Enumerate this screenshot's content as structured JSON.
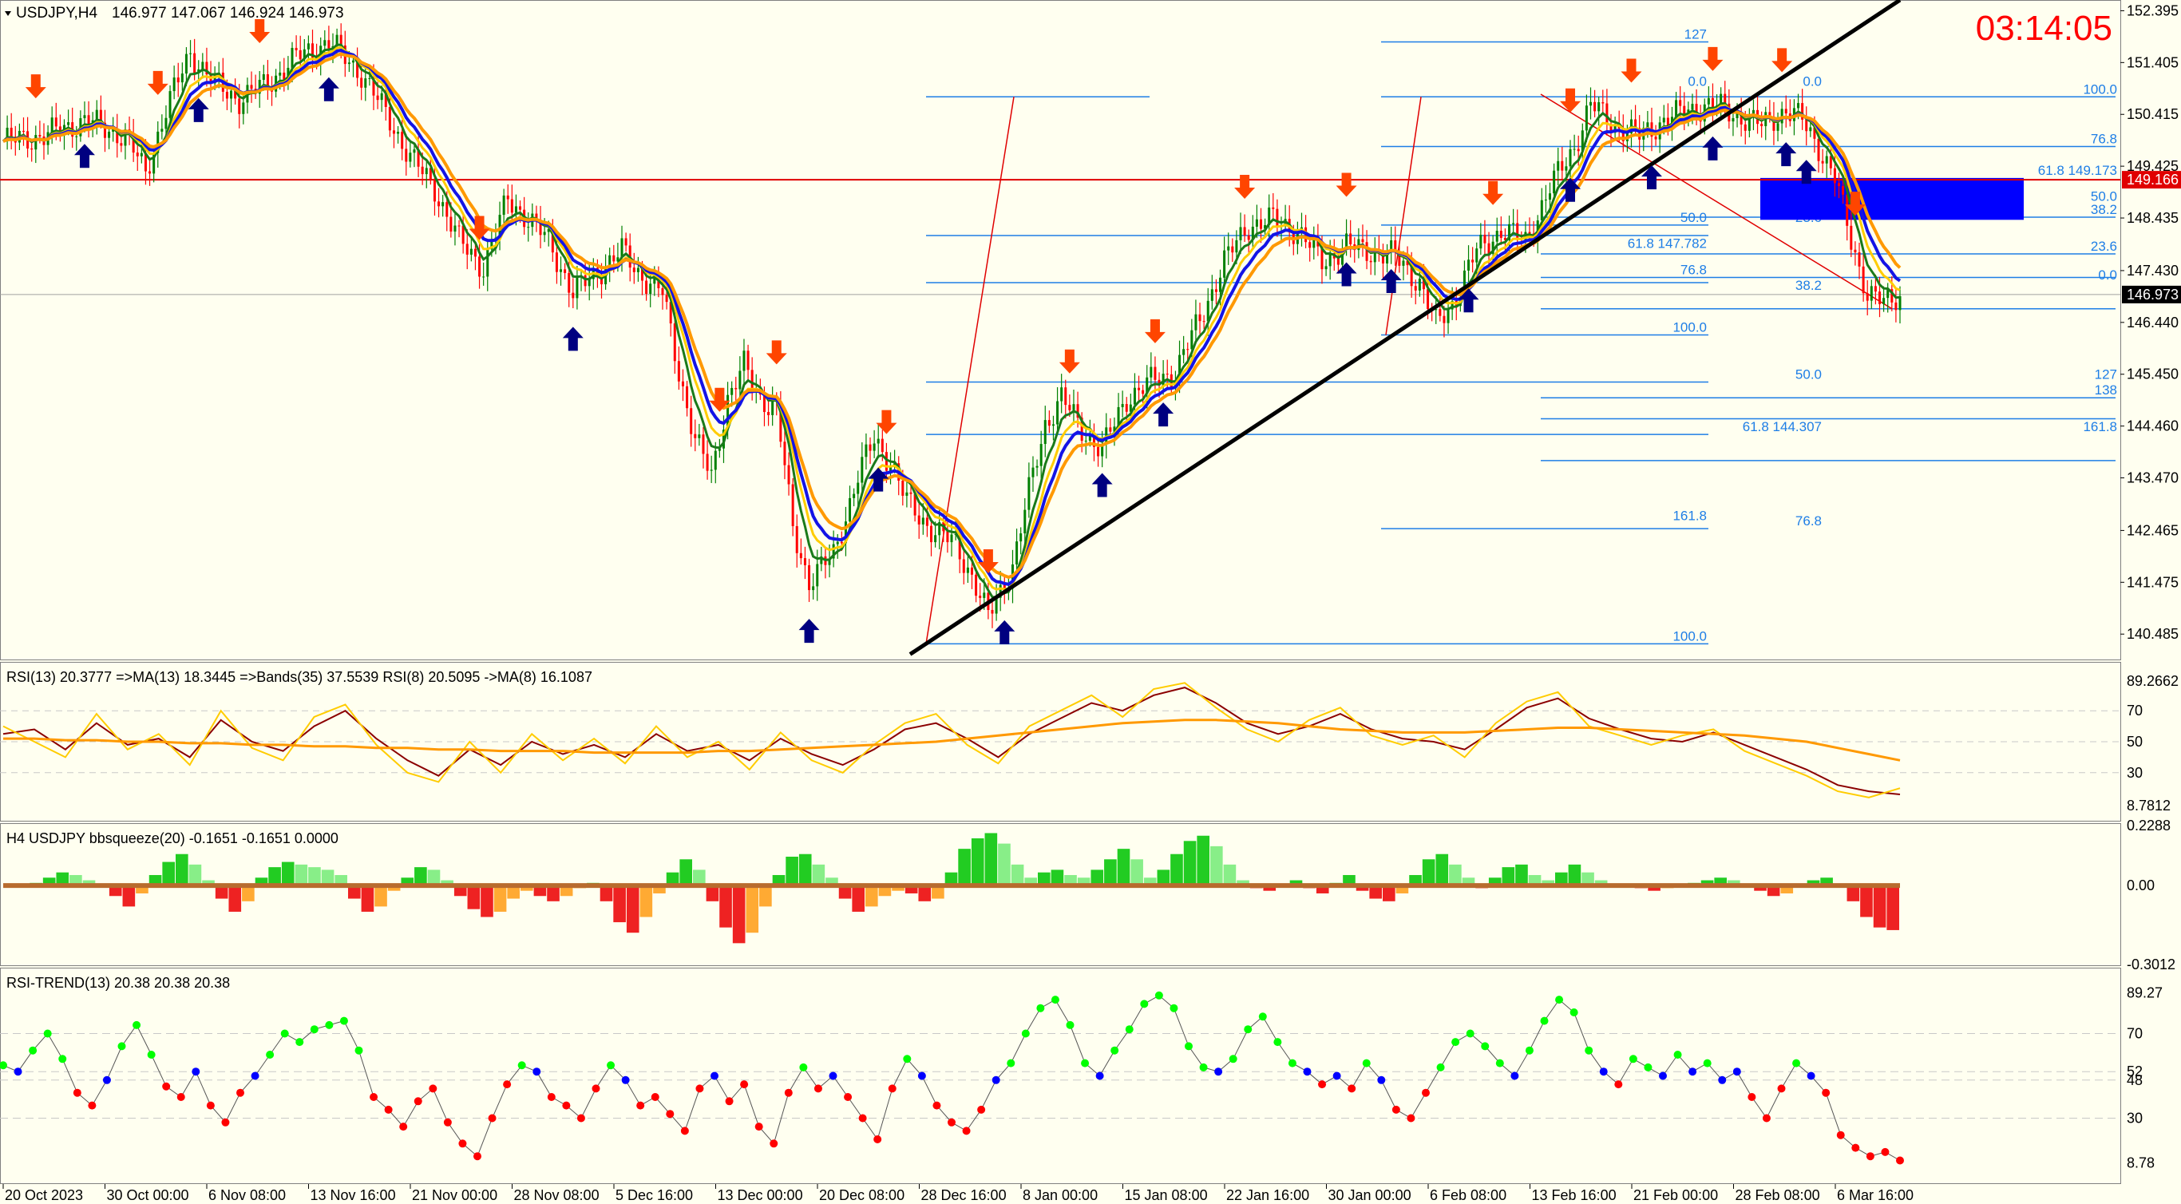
{
  "header": {
    "symbol": "USDJPY,H4",
    "ohlc": "146.977 147.067 146.924 146.973",
    "clock": "03:14:05"
  },
  "colors": {
    "background": "#fffff0",
    "grid": "#c8c8c8",
    "axis_text": "#000000",
    "bull": "#008000",
    "bear": "#ff0000",
    "ma_fast_green": "#1a7a1a",
    "ma_blue": "#1414e6",
    "ma_orange": "#ff9900",
    "ma_yellow": "#ffcc00",
    "fib": "#1e7ee6",
    "support_line": "#e00000",
    "trendline": "#000000",
    "clock": "#ff0000",
    "signal_up": "#000080",
    "signal_down": "#ff4500",
    "zone": "#0000ff",
    "rsi_green": "#00ff00",
    "rsi_red": "#ff0000",
    "rsi_blue": "#0000ff"
  },
  "chart_data": [
    {
      "type": "candlestick",
      "panel": "main",
      "title": "USDJPY,H4",
      "ylim": [
        140.0,
        152.6
      ],
      "price_ticks": [
        "152.395",
        "151.405",
        "150.415",
        "149.425",
        "148.435",
        "147.430",
        "146.440",
        "145.450",
        "144.460",
        "143.470",
        "142.465",
        "141.475",
        "140.485"
      ],
      "x_ticks": [
        "20 Oct 2023",
        "30 Oct 00:00",
        "6 Nov 08:00",
        "13 Nov 16:00",
        "21 Nov 00:00",
        "28 Nov 08:00",
        "5 Dec 16:00",
        "13 Dec 00:00",
        "20 Dec 08:00",
        "28 Dec 16:00",
        "8 Jan 00:00",
        "15 Jan 08:00",
        "22 Jan 16:00",
        "30 Jan 00:00",
        "6 Feb 08:00",
        "13 Feb 16:00",
        "21 Feb 00:00",
        "28 Feb 08:00",
        "6 Mar 16:00"
      ],
      "close_path": [
        [
          0,
          149.9
        ],
        [
          10,
          150.0
        ],
        [
          20,
          150.3
        ],
        [
          30,
          150.0
        ],
        [
          35,
          149.3
        ],
        [
          40,
          150.5
        ],
        [
          46,
          151.6
        ],
        [
          52,
          151.0
        ],
        [
          58,
          150.7
        ],
        [
          65,
          151.0
        ],
        [
          72,
          151.5
        ],
        [
          80,
          151.8
        ],
        [
          88,
          151.2
        ],
        [
          95,
          150.3
        ],
        [
          100,
          149.6
        ],
        [
          106,
          149.0
        ],
        [
          112,
          148.0
        ],
        [
          118,
          147.5
        ],
        [
          124,
          148.8
        ],
        [
          128,
          148.5
        ],
        [
          134,
          148.0
        ],
        [
          140,
          147.0
        ],
        [
          146,
          147.4
        ],
        [
          152,
          147.8
        ],
        [
          156,
          147.4
        ],
        [
          162,
          147.0
        ],
        [
          166,
          145.5
        ],
        [
          170,
          144.2
        ],
        [
          174,
          143.5
        ],
        [
          178,
          145.0
        ],
        [
          182,
          145.6
        ],
        [
          186,
          145.0
        ],
        [
          190,
          144.8
        ],
        [
          194,
          142.5
        ],
        [
          198,
          141.5
        ],
        [
          204,
          142.0
        ],
        [
          210,
          143.5
        ],
        [
          214,
          144.2
        ],
        [
          218,
          143.8
        ],
        [
          222,
          143.0
        ],
        [
          228,
          142.5
        ],
        [
          234,
          142.2
        ],
        [
          238,
          141.6
        ],
        [
          242,
          140.8
        ],
        [
          248,
          141.8
        ],
        [
          252,
          143.2
        ],
        [
          256,
          144.5
        ],
        [
          260,
          145.0
        ],
        [
          265,
          144.4
        ],
        [
          270,
          144.0
        ],
        [
          276,
          145.0
        ],
        [
          282,
          145.3
        ],
        [
          288,
          145.5
        ],
        [
          294,
          146.5
        ],
        [
          300,
          147.6
        ],
        [
          306,
          148.3
        ],
        [
          312,
          148.4
        ],
        [
          318,
          148.2
        ],
        [
          324,
          147.6
        ],
        [
          330,
          147.9
        ],
        [
          336,
          147.8
        ],
        [
          342,
          147.7
        ],
        [
          348,
          147.2
        ],
        [
          352,
          146.4
        ],
        [
          356,
          146.8
        ],
        [
          362,
          147.8
        ],
        [
          368,
          148.2
        ],
        [
          374,
          148.0
        ],
        [
          380,
          149.0
        ],
        [
          386,
          149.8
        ],
        [
          390,
          150.6
        ],
        [
          396,
          150.2
        ],
        [
          402,
          150.0
        ],
        [
          408,
          150.3
        ],
        [
          414,
          150.5
        ],
        [
          420,
          150.6
        ],
        [
          426,
          150.4
        ],
        [
          432,
          150.2
        ],
        [
          438,
          150.5
        ],
        [
          442,
          150.3
        ],
        [
          446,
          149.8
        ],
        [
          450,
          149.2
        ],
        [
          454,
          148.0
        ],
        [
          458,
          147.0
        ],
        [
          462,
          146.8
        ],
        [
          466,
          146.97
        ]
      ]
    },
    {
      "type": "line",
      "panel": "rsi",
      "title": "RSI(13) 20.3777  =>MA(13) 18.3445  =>Bands(35) 37.5539  RSI(8) 20.5095  ->MA(8) 16.1087",
      "ylim": [
        0,
        100
      ],
      "y_ticks": [
        "89.2662",
        "70",
        "50",
        "30",
        "8.7812"
      ],
      "tick_values": [
        89.2662,
        70,
        50,
        30,
        8.7812
      ],
      "series": [
        {
          "color": "#8b0000",
          "values": [
            55,
            58,
            45,
            62,
            48,
            52,
            40,
            64,
            50,
            44,
            60,
            70,
            52,
            38,
            28,
            45,
            35,
            50,
            42,
            48,
            40,
            55,
            44,
            48,
            38,
            52,
            42,
            35,
            45,
            58,
            62,
            52,
            40,
            55,
            65,
            75,
            70,
            80,
            85,
            75,
            62,
            55,
            60,
            68,
            58,
            52,
            50,
            45,
            58,
            72,
            78,
            65,
            58,
            52,
            50,
            56,
            48,
            40,
            32,
            22,
            18,
            16
          ]
        },
        {
          "color": "#ffcc00",
          "values": [
            60,
            50,
            40,
            68,
            45,
            55,
            35,
            70,
            46,
            38,
            66,
            74,
            48,
            30,
            24,
            50,
            30,
            55,
            38,
            52,
            36,
            60,
            40,
            50,
            32,
            56,
            38,
            30,
            48,
            62,
            68,
            48,
            36,
            60,
            70,
            80,
            66,
            84,
            88,
            72,
            58,
            50,
            64,
            72,
            54,
            48,
            54,
            40,
            62,
            76,
            82,
            60,
            54,
            48,
            54,
            58,
            44,
            36,
            28,
            18,
            14,
            20
          ]
        },
        {
          "color": "#ff9900",
          "values": [
            52,
            52,
            51,
            51,
            50,
            50,
            49,
            49,
            48,
            48,
            47,
            47,
            46,
            46,
            45,
            45,
            44,
            44,
            44,
            43,
            43,
            43,
            43,
            44,
            44,
            45,
            46,
            47,
            48,
            49,
            50,
            52,
            54,
            56,
            58,
            60,
            62,
            63,
            64,
            64,
            63,
            62,
            60,
            58,
            57,
            56,
            56,
            56,
            57,
            58,
            59,
            59,
            58,
            57,
            56,
            55,
            54,
            52,
            50,
            46,
            42,
            38
          ]
        }
      ]
    },
    {
      "type": "bar",
      "panel": "squeeze",
      "title": "H4 USDJPY bbsqueeze(20) -0.1651 -0.1651 0.0000",
      "ylim": [
        -0.3012,
        0.2288
      ],
      "y_ticks": [
        "0.2288",
        "0.00",
        "-0.3012"
      ],
      "tick_values": [
        0.2288,
        0,
        -0.3012
      ],
      "values": [
        0,
        0,
        0.01,
        0.03,
        0.05,
        0.04,
        0.02,
        0,
        -0.04,
        -0.08,
        -0.03,
        0.04,
        0.09,
        0.12,
        0.08,
        0.02,
        -0.05,
        -0.1,
        -0.06,
        0.03,
        0.07,
        0.09,
        0.08,
        0.07,
        0.06,
        0.04,
        -0.05,
        -0.1,
        -0.08,
        -0.02,
        0.03,
        0.07,
        0.06,
        0.02,
        -0.04,
        -0.09,
        -0.12,
        -0.1,
        -0.05,
        -0.02,
        -0.04,
        -0.06,
        -0.04,
        -0.01,
        0.01,
        -0.06,
        -0.14,
        -0.18,
        -0.12,
        -0.03,
        0.05,
        0.1,
        0.06,
        -0.06,
        -0.16,
        -0.22,
        -0.18,
        -0.08,
        0.04,
        0.11,
        0.12,
        0.08,
        0.03,
        -0.05,
        -0.1,
        -0.08,
        -0.04,
        -0.02,
        -0.03,
        -0.06,
        -0.05,
        0.05,
        0.14,
        0.18,
        0.2,
        0.16,
        0.08,
        0.03,
        0.05,
        0.06,
        0.04,
        0.03,
        0.06,
        0.1,
        0.14,
        0.1,
        0.03,
        0.06,
        0.12,
        0.17,
        0.19,
        0.15,
        0.08,
        0.02,
        -0.01,
        -0.02,
        0.0,
        0.02,
        -0.01,
        -0.03,
        0.01,
        0.04,
        -0.02,
        -0.05,
        -0.06,
        -0.03,
        0.04,
        0.1,
        0.12,
        0.08,
        0.03,
        -0.01,
        0.03,
        0.07,
        0.08,
        0.04,
        0.02,
        0.05,
        0.08,
        0.05,
        0.02,
        0,
        0.0,
        -0.01,
        -0.02,
        -0.01,
        0,
        0.01,
        0.02,
        0.03,
        0.02,
        0,
        -0.02,
        -0.04,
        -0.03,
        0.0,
        0.02,
        0.03,
        0.0,
        -0.06,
        -0.12,
        -0.16,
        -0.17
      ]
    },
    {
      "type": "scatter",
      "panel": "rsi_trend",
      "title": "RSI-TREND(13) 20.38 20.38 20.38",
      "ylim": [
        0,
        100
      ],
      "y_ticks": [
        "89.27",
        "70",
        "52",
        "48",
        "30",
        "8.78"
      ],
      "tick_values": [
        89.27,
        70,
        52,
        48,
        30,
        8.78
      ],
      "values": [
        55,
        52,
        62,
        70,
        58,
        42,
        36,
        48,
        64,
        74,
        60,
        45,
        40,
        52,
        36,
        28,
        42,
        50,
        60,
        70,
        66,
        72,
        74,
        76,
        62,
        40,
        34,
        26,
        38,
        44,
        28,
        18,
        12,
        30,
        46,
        55,
        52,
        40,
        36,
        30,
        44,
        55,
        48,
        36,
        40,
        32,
        24,
        44,
        50,
        38,
        46,
        26,
        18,
        42,
        54,
        44,
        50,
        40,
        30,
        20,
        44,
        58,
        50,
        36,
        28,
        24,
        34,
        48,
        56,
        70,
        82,
        86,
        74,
        56,
        50,
        62,
        72,
        84,
        88,
        82,
        64,
        54,
        52,
        58,
        72,
        78,
        66,
        56,
        52,
        46,
        50,
        44,
        56,
        48,
        34,
        30,
        42,
        54,
        66,
        70,
        64,
        56,
        50,
        62,
        76,
        86,
        80,
        62,
        52,
        46,
        58,
        54,
        50,
        60,
        52,
        56,
        48,
        52,
        40,
        30,
        44,
        56,
        50,
        42,
        22,
        16,
        12,
        14,
        10
      ]
    }
  ]
}
